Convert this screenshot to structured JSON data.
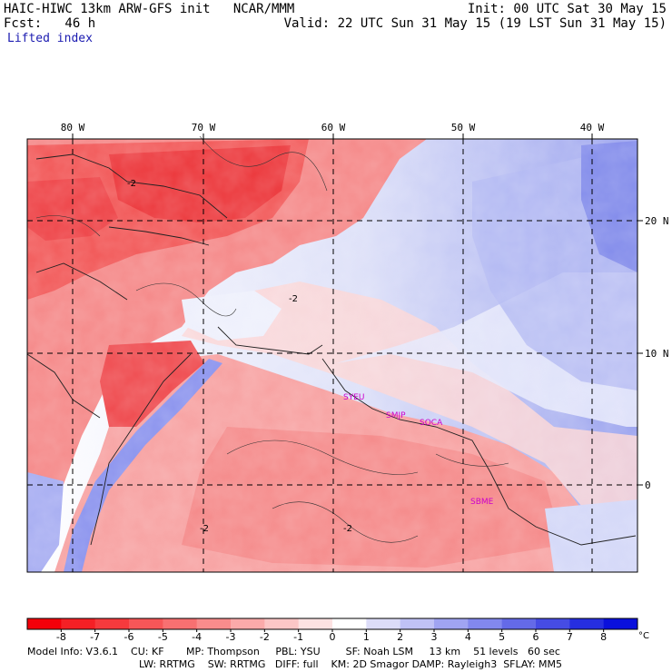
{
  "header": {
    "title_left": "HAIC-HIWC 13km ARW-GFS init   NCAR/MMM",
    "init": "Init: 00 UTC Sat 30 May 15",
    "fcst": "Fcst:   46 h",
    "valid": "Valid: 22 UTC Sun 31 May 15 (19 LST Sun 31 May 15)",
    "field": "Lifted index"
  },
  "map": {
    "lon_labels": [
      "80 W",
      "70 W",
      "60 W",
      "50 W",
      "40 W"
    ],
    "lat_labels": [
      "20 N",
      "10 N",
      "0"
    ],
    "contour_labels": [
      "-2",
      "-2",
      "-2",
      "-2"
    ],
    "stations": [
      "SYEU",
      "SMJP",
      "SOCA",
      "SBME"
    ],
    "colors": {
      "deep_red": "#e8282d",
      "red": "#f05050",
      "light_red": "#f7a0a0",
      "pale_red": "#fcd2d2",
      "pale_blue": "#d8dcf8",
      "light_blue": "#a8b0f0",
      "blue": "#7078e6",
      "station": "#cc00cc"
    }
  },
  "colorbar": {
    "ticks": [
      "-8",
      "-7",
      "-6",
      "-5",
      "-4",
      "-3",
      "-2",
      "-1",
      "0",
      "1",
      "2",
      "3",
      "4",
      "5",
      "6",
      "7",
      "8"
    ],
    "unit": "°C",
    "colors": [
      "#f4000a",
      "#f52025",
      "#f63a3d",
      "#f75658",
      "#f87071",
      "#f98c8c",
      "#fbaaaa",
      "#fcc6c6",
      "#fde2e2",
      "#ffffff",
      "#dcdcf8",
      "#c0c2f6",
      "#a0a4f2",
      "#8288ee",
      "#646ae8",
      "#464ce4",
      "#262ee0",
      "#0a10dc"
    ]
  },
  "footer": {
    "line1": "Model Info: V3.6.1    CU: KF       MP: Thompson     PBL: YSU        SF: Noah LSM     13 km    51 levels   60 sec",
    "line2": "LW: RRTMG    SW: RRTMG   DIFF: full    KM: 2D Smagor DAMP: Rayleigh3  SFLAY: MM5"
  }
}
